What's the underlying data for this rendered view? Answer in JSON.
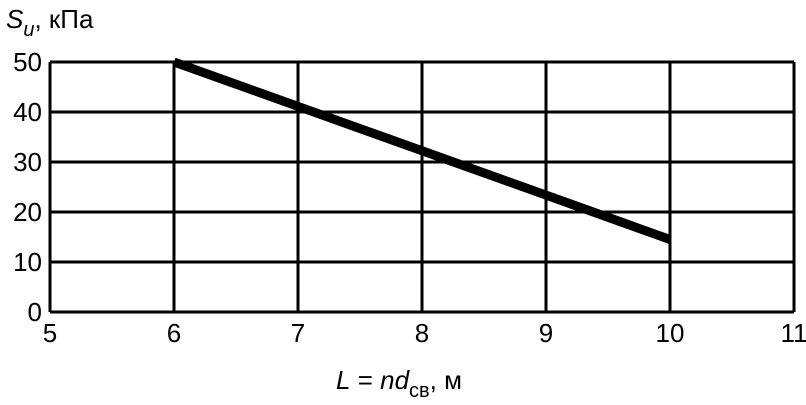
{
  "chart_data": {
    "type": "line",
    "ylabel": {
      "symbol": "S",
      "subscript": "u",
      "unit": ", кПа"
    },
    "xlabel": {
      "symbol": "L",
      "equals": " = ",
      "expr": "nd",
      "subscript": "св",
      "unit": ", м"
    },
    "xlim": [
      5,
      11
    ],
    "ylim": [
      0,
      50
    ],
    "x_ticks": [
      "5",
      "6",
      "7",
      "8",
      "9",
      "10",
      "11"
    ],
    "y_ticks": [
      "0",
      "10",
      "20",
      "30",
      "40",
      "50"
    ],
    "grid": true,
    "series": [
      {
        "x": [
          6,
          10
        ],
        "y": [
          50,
          14.5
        ]
      }
    ],
    "colors": {
      "line": "#000000",
      "grid": "#000000"
    }
  }
}
